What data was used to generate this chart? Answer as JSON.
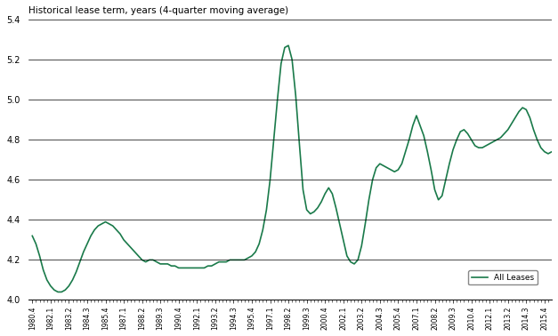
{
  "title": "Historical lease term, years (4-quarter moving average)",
  "line_color": "#1a7a4a",
  "legend_label": "All Leases",
  "ylim": [
    4.0,
    5.4
  ],
  "yticks": [
    4.0,
    4.2,
    4.4,
    4.6,
    4.8,
    5.0,
    5.2,
    5.4
  ],
  "background_color": "#ffffff",
  "x_labels": [
    "1980.4",
    "1982.1",
    "1983.2",
    "1984.3",
    "1985.4",
    "1987.1",
    "1988.2",
    "1989.3",
    "1990.4",
    "1992.1",
    "1993.2",
    "1994.3",
    "1995.4",
    "1997.1",
    "1998.2",
    "1999.3",
    "2000.4",
    "2002.1",
    "2003.2",
    "2004.3",
    "2005.4",
    "2007.1",
    "2008.2",
    "2009.3",
    "2010.4",
    "2012.1",
    "2013.2",
    "2014.3",
    "2015.4"
  ],
  "label_positions": {
    "1980.4": 0,
    "1982.1": 5,
    "1983.2": 10,
    "1984.3": 15,
    "1985.4": 20,
    "1987.1": 25,
    "1988.2": 30,
    "1989.3": 35,
    "1990.4": 40,
    "1992.1": 45,
    "1993.2": 50,
    "1994.3": 55,
    "1995.4": 60,
    "1997.1": 65,
    "1998.2": 70,
    "1999.3": 75,
    "2000.4": 80,
    "2002.1": 85,
    "2003.2": 90,
    "2004.3": 95,
    "2005.4": 100,
    "2007.1": 105,
    "2008.2": 110,
    "2009.3": 115,
    "2010.4": 120,
    "2012.1": 125,
    "2013.2": 130,
    "2014.3": 135,
    "2015.4": 140
  },
  "y_values": [
    4.32,
    4.28,
    4.22,
    4.15,
    4.1,
    4.07,
    4.05,
    4.04,
    4.04,
    4.05,
    4.07,
    4.1,
    4.14,
    4.19,
    4.24,
    4.28,
    4.32,
    4.35,
    4.37,
    4.38,
    4.39,
    4.38,
    4.37,
    4.35,
    4.33,
    4.3,
    4.28,
    4.26,
    4.24,
    4.22,
    4.2,
    4.19,
    4.2,
    4.2,
    4.19,
    4.18,
    4.18,
    4.18,
    4.17,
    4.17,
    4.16,
    4.16,
    4.16,
    4.16,
    4.16,
    4.16,
    4.16,
    4.16,
    4.17,
    4.17,
    4.18,
    4.19,
    4.19,
    4.19,
    4.2,
    4.2,
    4.2,
    4.2,
    4.2,
    4.21,
    4.22,
    4.24,
    4.28,
    4.35,
    4.45,
    4.6,
    4.8,
    5.0,
    5.18,
    5.26,
    5.27,
    5.2,
    5.02,
    4.78,
    4.55,
    4.45,
    4.43,
    4.44,
    4.46,
    4.49,
    4.53,
    4.56,
    4.53,
    4.46,
    4.38,
    4.3,
    4.22,
    4.19,
    4.18,
    4.2,
    4.27,
    4.38,
    4.5,
    4.6,
    4.66,
    4.68,
    4.67,
    4.66,
    4.65,
    4.64,
    4.65,
    4.68,
    4.74,
    4.8,
    4.87,
    4.92,
    4.87,
    4.82,
    4.74,
    4.65,
    4.55,
    4.5,
    4.52,
    4.6,
    4.68,
    4.75,
    4.8,
    4.84,
    4.85,
    4.83,
    4.8,
    4.77,
    4.76,
    4.76,
    4.77,
    4.78,
    4.79,
    4.8,
    4.81,
    4.83,
    4.85,
    4.88,
    4.91,
    4.94,
    4.96,
    4.95,
    4.91,
    4.85,
    4.8,
    4.76,
    4.74,
    4.73,
    4.74,
    4.74,
    4.73
  ]
}
